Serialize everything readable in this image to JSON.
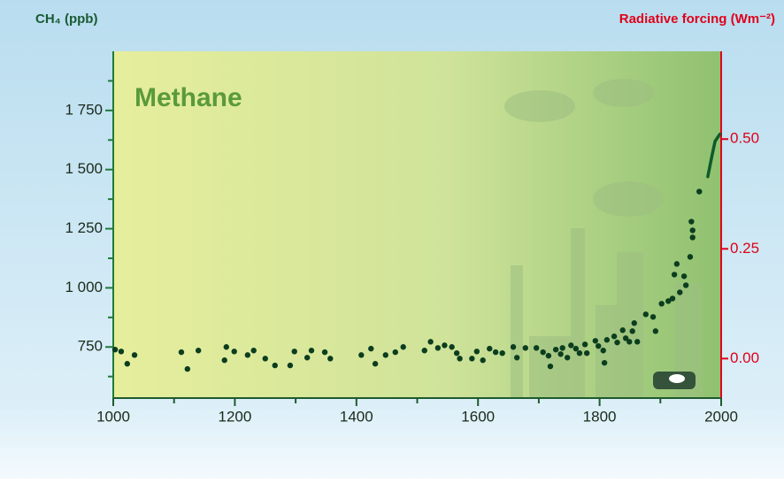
{
  "chart_data": {
    "type": "scatter",
    "title": "Methane",
    "y_label": "CH₄ (ppb)",
    "y2_label": "Radiative forcing (Wm⁻²)",
    "xlim": [
      1000,
      2000
    ],
    "xticks": [
      1000,
      1200,
      1400,
      1600,
      1800,
      2000
    ],
    "xticks_minor": [
      1100,
      1300,
      1500,
      1700,
      1900
    ],
    "ylim": [
      534,
      2000
    ],
    "yticks": [
      750,
      {
        "value": 1000,
        "label": "1 000"
      },
      {
        "value": 1250,
        "label": "1 250"
      },
      {
        "value": 1500,
        "label": "1 500"
      },
      {
        "value": 1750,
        "label": "1 750"
      }
    ],
    "yticks_minor": [
      625,
      875,
      1125,
      1375,
      1625,
      1875
    ],
    "y2lim": [
      -0.09,
      0.7
    ],
    "y2ticks": [
      {
        "value": 0,
        "label": "0.00"
      },
      {
        "value": 0.25,
        "label": "0.25"
      },
      {
        "value": 0.5,
        "label": "0.50"
      }
    ],
    "series": [
      {
        "type": "scatter",
        "color": "#0b3d1e",
        "x": [
          1003,
          1013,
          1023,
          1035,
          1112,
          1122,
          1140,
          1183,
          1186,
          1199,
          1221,
          1231,
          1250,
          1266,
          1291,
          1298,
          1319,
          1326,
          1348,
          1357,
          1408,
          1424,
          1431,
          1448,
          1464,
          1477,
          1512,
          1522,
          1534,
          1545,
          1557,
          1565,
          1570,
          1590,
          1598,
          1608,
          1619,
          1629,
          1640,
          1658,
          1664,
          1678,
          1696,
          1707,
          1716,
          1719,
          1728,
          1736,
          1739,
          1747,
          1753,
          1761,
          1767,
          1776,
          1779,
          1793,
          1798,
          1806,
          1808,
          1812,
          1824,
          1829,
          1838,
          1843,
          1849,
          1854,
          1857,
          1862,
          1876,
          1888,
          1892,
          1902,
          1913,
          1920,
          1923,
          1927,
          1932,
          1939,
          1942,
          1949,
          1953,
          1951,
          1953,
          1964
        ],
        "values": [
          739,
          731,
          679,
          716,
          728,
          657,
          735,
          694,
          750,
          731,
          716,
          735,
          701,
          672,
          672,
          731,
          705,
          735,
          728,
          701,
          716,
          743,
          679,
          716,
          728,
          750,
          735,
          772,
          746,
          757,
          750,
          724,
          701,
          701,
          731,
          694,
          743,
          728,
          724,
          750,
          705,
          746,
          746,
          728,
          713,
          668,
          739,
          720,
          746,
          705,
          757,
          743,
          724,
          761,
          724,
          776,
          754,
          735,
          683,
          780,
          795,
          769,
          821,
          787,
          772,
          817,
          851,
          772,
          888,
          877,
          817,
          933,
          944,
          955,
          1056,
          1101,
          981,
          1049,
          1011,
          1131,
          1213,
          1280,
          1243,
          1407
        ]
      },
      {
        "type": "line",
        "color": "#0f5a2a",
        "x": [
          1978,
          1985,
          1990,
          1998
        ],
        "values": [
          1470,
          1560,
          1620,
          1650
        ]
      }
    ]
  }
}
